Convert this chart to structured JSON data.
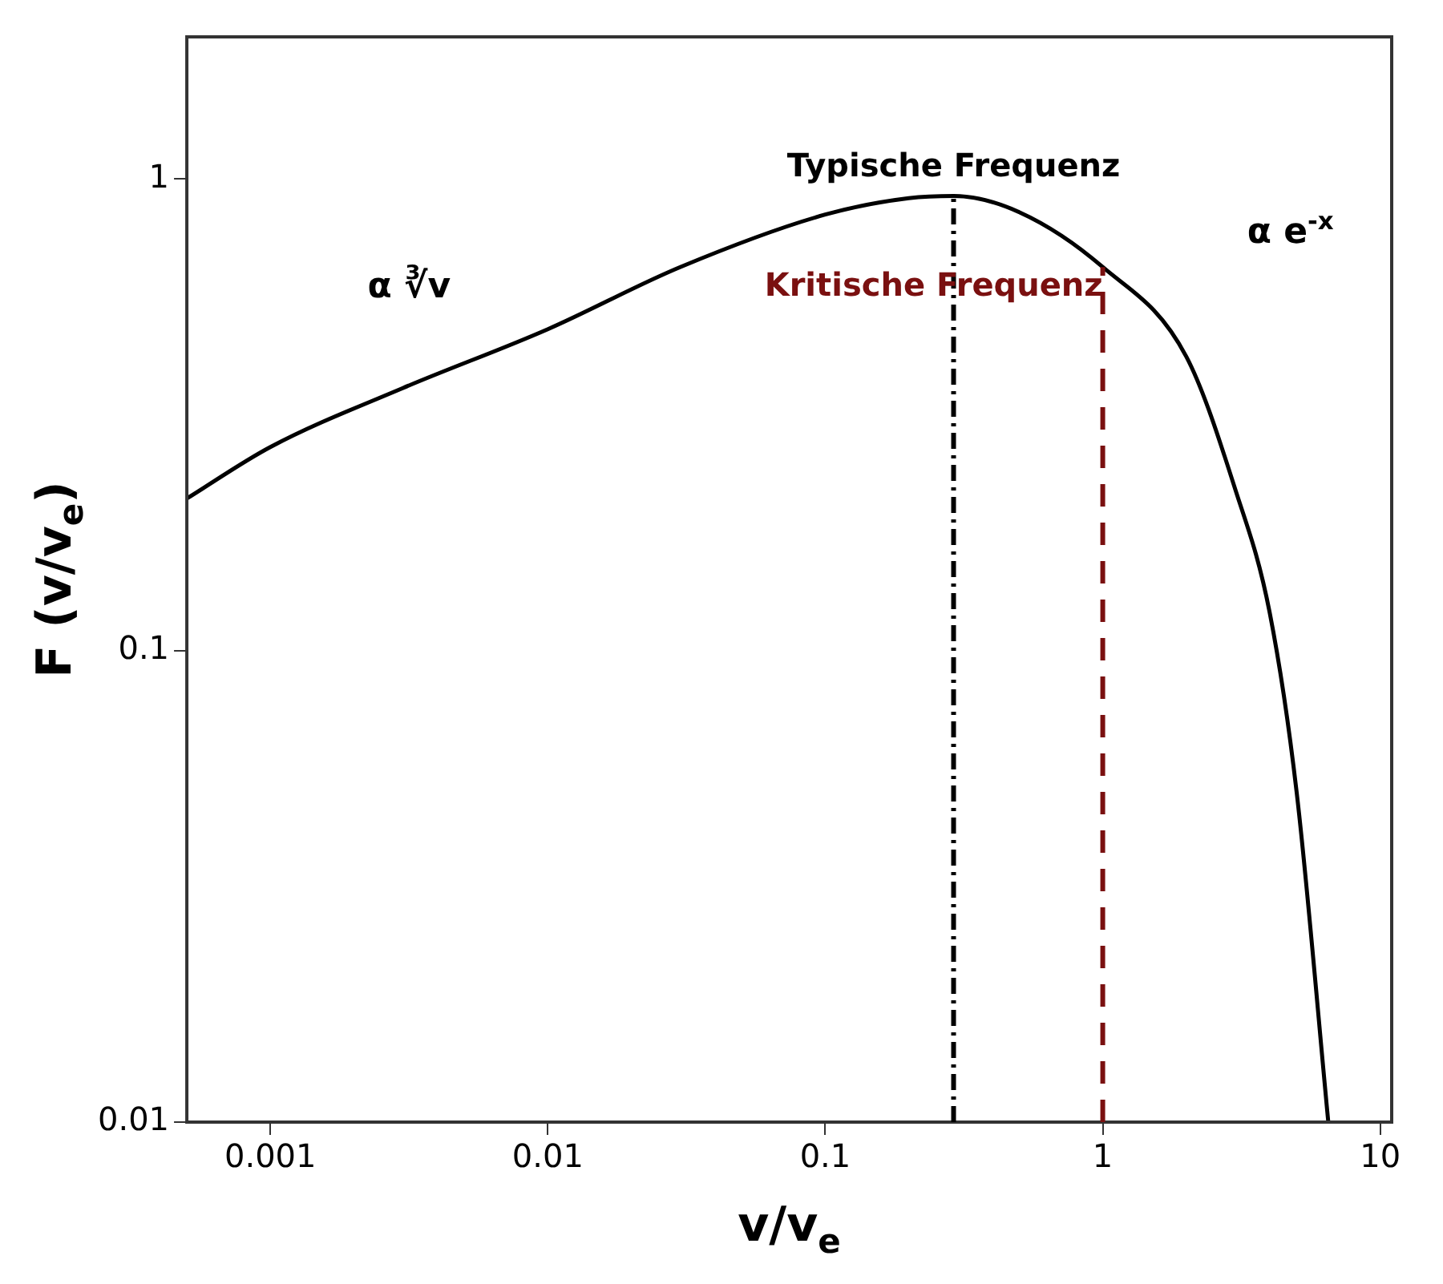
{
  "chart_data": {
    "type": "line",
    "xlabel": "v/v$_{e}$",
    "ylabel": "F (v/v$_{e}$)",
    "log": "xy",
    "grid": false,
    "legend": false,
    "marker": "none",
    "line_style": "solid",
    "xlim": [
      0.0005,
      11
    ],
    "ylim": [
      0.01,
      2
    ],
    "xticks": [
      0.001,
      0.01,
      0.1,
      1,
      10
    ],
    "yticks": [
      0.01,
      0.1,
      1
    ],
    "series": [
      {
        "color": "#000000",
        "x": [
          0.0005,
          0.001,
          0.003,
          0.01,
          0.03,
          0.1,
          0.2,
          0.29,
          0.5,
          1,
          2,
          3,
          4,
          5,
          6.5
        ],
        "values": [
          0.21,
          0.27,
          0.36,
          0.48,
          0.65,
          0.84,
          0.91,
          0.92,
          0.85,
          0.65,
          0.42,
          0.22,
          0.12,
          0.05,
          0.01
        ]
      }
    ],
    "ref_lines": [
      {
        "axis": "x",
        "value": 0.29,
        "label": "Typische Frequenz",
        "color": "#000000",
        "line_style": "dashdot"
      },
      {
        "axis": "x",
        "value": 1,
        "label": "Kritische Frequenz",
        "color": "#7a1010",
        "line_style": "dashed"
      }
    ],
    "annotations": [
      "α ∛v",
      "α e$^{-x}$"
    ]
  }
}
